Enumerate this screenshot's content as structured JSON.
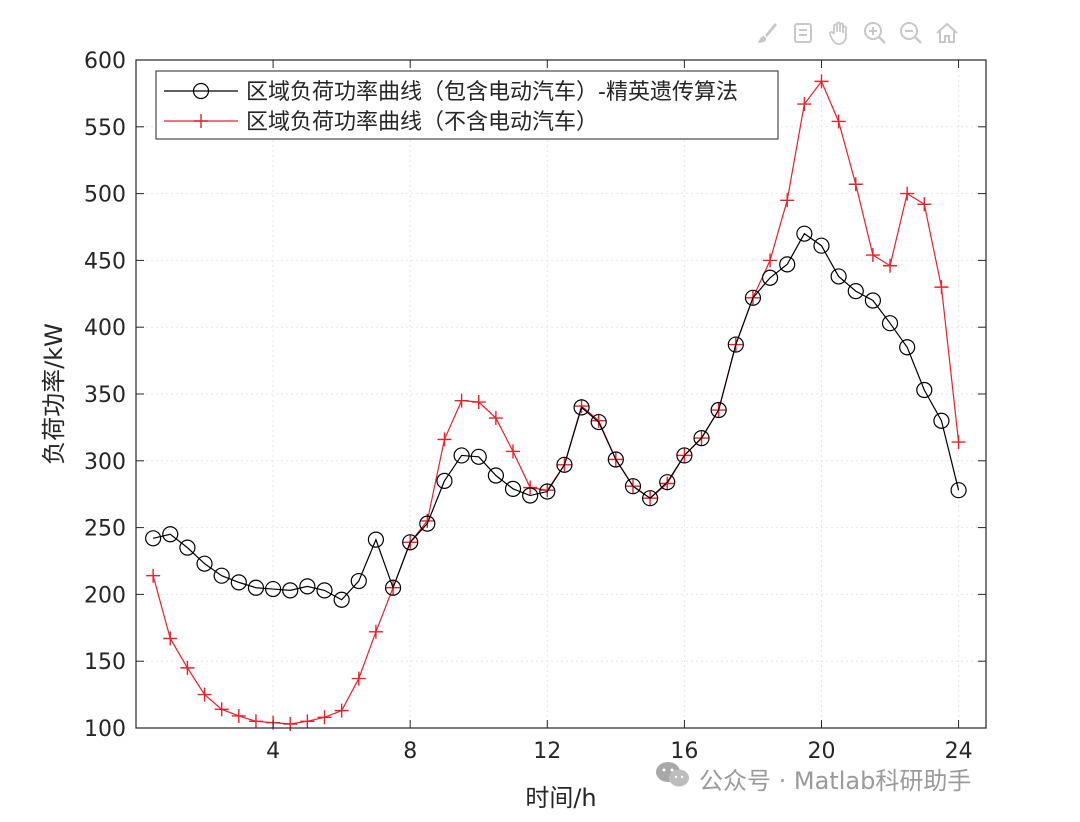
{
  "toolbar": {
    "icons": [
      "brush-icon",
      "export-icon",
      "pan-hand-icon",
      "zoom-in-icon",
      "zoom-out-icon",
      "home-icon"
    ]
  },
  "watermark": {
    "text": "公众号 · Matlab科研助手",
    "icon": "wechat-icon"
  },
  "chart_data": {
    "type": "line",
    "xlabel": "时间/h",
    "ylabel": "负荷功率/kW",
    "xlim": [
      0,
      24.8
    ],
    "ylim": [
      100,
      600
    ],
    "xticks": [
      4,
      8,
      12,
      16,
      20,
      24
    ],
    "yticks": [
      100,
      150,
      200,
      250,
      300,
      350,
      400,
      450,
      500,
      550,
      600
    ],
    "grid": true,
    "legend_position": "top-left",
    "x": [
      0.5,
      1,
      1.5,
      2,
      2.5,
      3,
      3.5,
      4,
      4.5,
      5,
      5.5,
      6,
      6.5,
      7,
      7.5,
      8,
      8.5,
      9,
      9.5,
      10,
      10.5,
      11,
      11.5,
      12,
      12.5,
      13,
      13.5,
      14,
      14.5,
      15,
      15.5,
      16,
      16.5,
      17,
      17.5,
      18,
      18.5,
      19,
      19.5,
      20,
      20.5,
      21,
      21.5,
      22,
      22.5,
      23,
      23.5,
      24
    ],
    "series": [
      {
        "name": "区域负荷功率曲线（包含电动汽车）-精英遗传算法",
        "color": "#000000",
        "marker": "circle",
        "values": [
          242,
          245,
          235,
          223,
          214,
          209,
          205,
          204,
          203,
          206,
          203,
          196,
          210,
          241,
          205,
          239,
          253,
          285,
          304,
          303,
          289,
          279,
          274,
          277,
          297,
          340,
          329,
          301,
          281,
          272,
          284,
          304,
          317,
          338,
          387,
          422,
          437,
          447,
          470,
          461,
          438,
          427,
          420,
          403,
          385,
          353,
          330,
          278
        ]
      },
      {
        "name": "区域负荷功率曲线（不含电动汽车）",
        "color": "#e8202a",
        "marker": "plus",
        "values": [
          214,
          167,
          145,
          125,
          114,
          109,
          105,
          104,
          103,
          105,
          108,
          113,
          137,
          172,
          205,
          239,
          255,
          316,
          345,
          344,
          332,
          307,
          280,
          278,
          297,
          341,
          330,
          301,
          281,
          272,
          283,
          304,
          317,
          338,
          387,
          422,
          450,
          495,
          567,
          584,
          554,
          507,
          454,
          446,
          500,
          492,
          430,
          314
        ]
      }
    ]
  }
}
